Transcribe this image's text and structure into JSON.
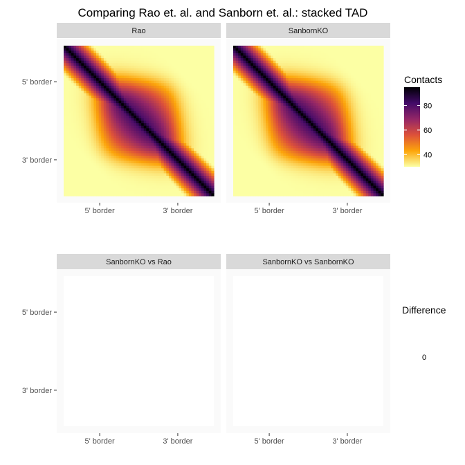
{
  "title": "Comparing Rao et. al. and Sanborn et. al.: stacked TAD",
  "chart_data": [
    {
      "type": "heatmap",
      "panel": "Rao",
      "x_ticks": [
        "5' border",
        "3' border"
      ],
      "y_ticks": [
        "5' border",
        "3' border"
      ],
      "fill": "Contacts",
      "fill_range": [
        30,
        95
      ],
      "pattern": "TAD: dark main diagonal, enriched square domain between the 5' and 3' borders"
    },
    {
      "type": "heatmap",
      "panel": "SanbornKO",
      "x_ticks": [
        "5' border",
        "3' border"
      ],
      "y_ticks": [
        "5' border",
        "3' border"
      ],
      "fill": "Contacts",
      "fill_range": [
        30,
        95
      ]
    },
    {
      "type": "heatmap",
      "panel": "SanbornKO vs Rao",
      "x_ticks": [
        "5' border",
        "3' border"
      ],
      "y_ticks": [
        "5' border",
        "3' border"
      ],
      "fill": "Difference",
      "values": 0
    },
    {
      "type": "heatmap",
      "panel": "SanbornKO vs SanbornKO",
      "x_ticks": [
        "5' border",
        "3' border"
      ],
      "y_ticks": [
        "5' border",
        "3' border"
      ],
      "fill": "Difference",
      "values": 0
    }
  ],
  "legends": {
    "contacts": {
      "title": "Contacts",
      "breaks": [
        "40",
        "60",
        "80"
      ],
      "break_values": [
        40,
        60,
        80
      ],
      "range": [
        30,
        95
      ]
    },
    "difference": {
      "title": "Difference",
      "breaks": [
        "0"
      ]
    }
  },
  "colors": {
    "strip_bg": "#d9d9d9",
    "panel_bg": "#ebebeb",
    "scale": [
      "#fcffa4",
      "#fca50a",
      "#dd513a",
      "#932667",
      "#420a68",
      "#000004"
    ]
  }
}
